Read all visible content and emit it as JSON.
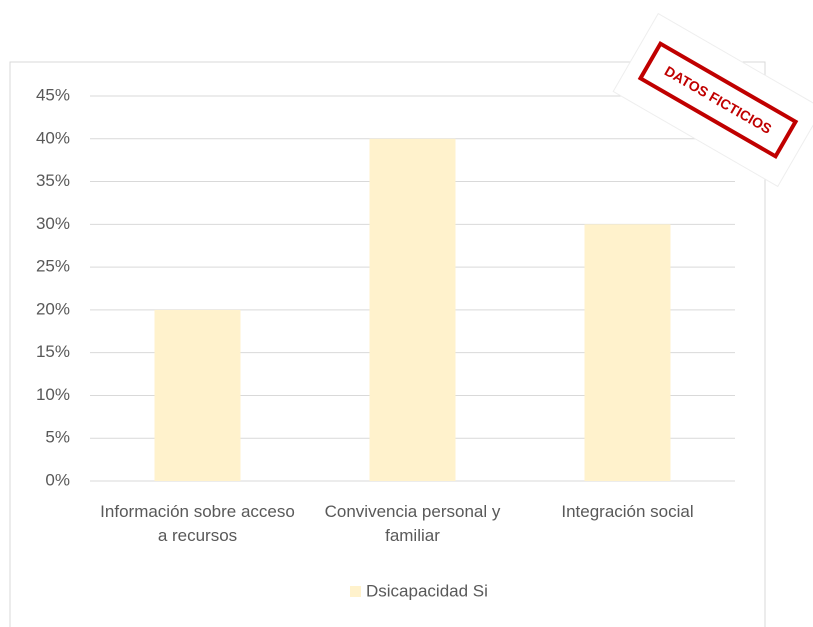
{
  "chart_data": {
    "type": "bar",
    "categories": [
      "Información sobre acceso a recursos",
      "Convivencia personal y familiar",
      "Integración social"
    ],
    "series": [
      {
        "name": "Dsicapacidad Si",
        "color": "#fff2cc",
        "values": [
          20,
          40,
          30
        ]
      }
    ],
    "ylim": [
      0,
      45
    ],
    "yticks": [
      {
        "value": 0,
        "label": "0%"
      },
      {
        "value": 5,
        "label": "5%"
      },
      {
        "value": 10,
        "label": "10%"
      },
      {
        "value": 15,
        "label": "15%"
      },
      {
        "value": 20,
        "label": "20%"
      },
      {
        "value": 25,
        "label": "25%"
      },
      {
        "value": 30,
        "label": "30%"
      },
      {
        "value": 35,
        "label": "35%"
      },
      {
        "value": 40,
        "label": "40%"
      },
      {
        "value": 45,
        "label": "45%"
      }
    ],
    "grid": true,
    "legend": "bottom",
    "annotation": "DATOS FICTICIOS"
  }
}
